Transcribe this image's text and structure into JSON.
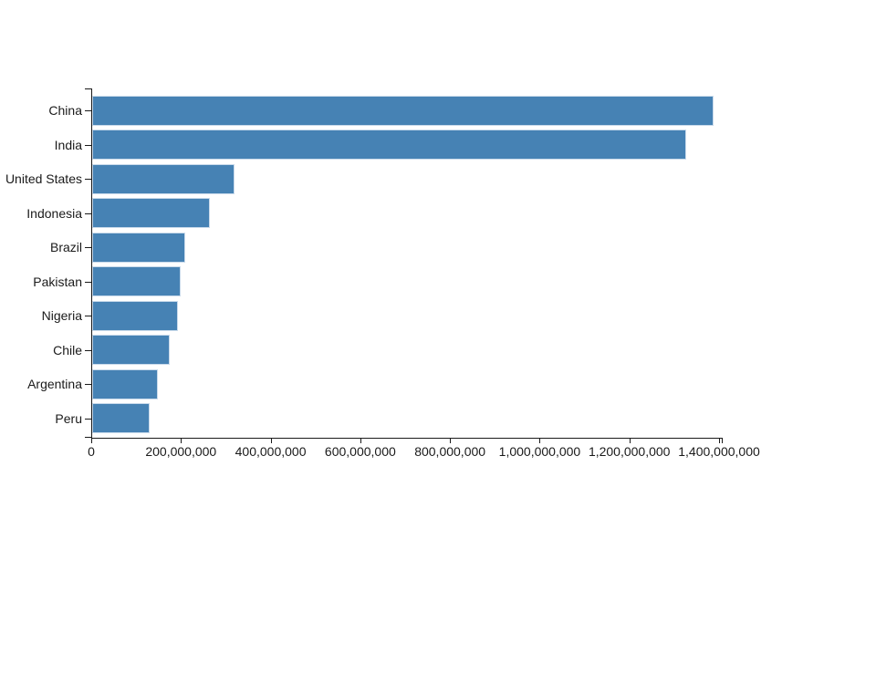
{
  "page": {
    "background": "#ffffff"
  },
  "chart_data": {
    "type": "bar",
    "orientation": "horizontal",
    "title": "",
    "xlabel": "",
    "ylabel": "",
    "categories": [
      "China",
      "India",
      "United States",
      "Indonesia",
      "Brazil",
      "Pakistan",
      "Nigeria",
      "Chile",
      "Argentina",
      "Peru"
    ],
    "values": [
      1385000000,
      1324000000,
      318000000,
      262000000,
      208000000,
      197000000,
      192000000,
      173000000,
      147000000,
      128000000
    ],
    "xlim": [
      0,
      1400000000
    ],
    "x_tick_values": [
      0,
      200000000,
      400000000,
      600000000,
      800000000,
      1000000000,
      1200000000,
      1400000000
    ],
    "x_tick_labels": [
      "0",
      "200,000,000",
      "400,000,000",
      "600,000,000",
      "800,000,000",
      "1,000,000,000",
      "1,200,000,000",
      "1,400,000,000"
    ],
    "grid": false,
    "legend": "none",
    "colors": {
      "bar_fill": "#4682b4",
      "bar_stroke": "#c9daeb",
      "axis": "#1a1a1a",
      "text": "#1a1a1a"
    }
  }
}
